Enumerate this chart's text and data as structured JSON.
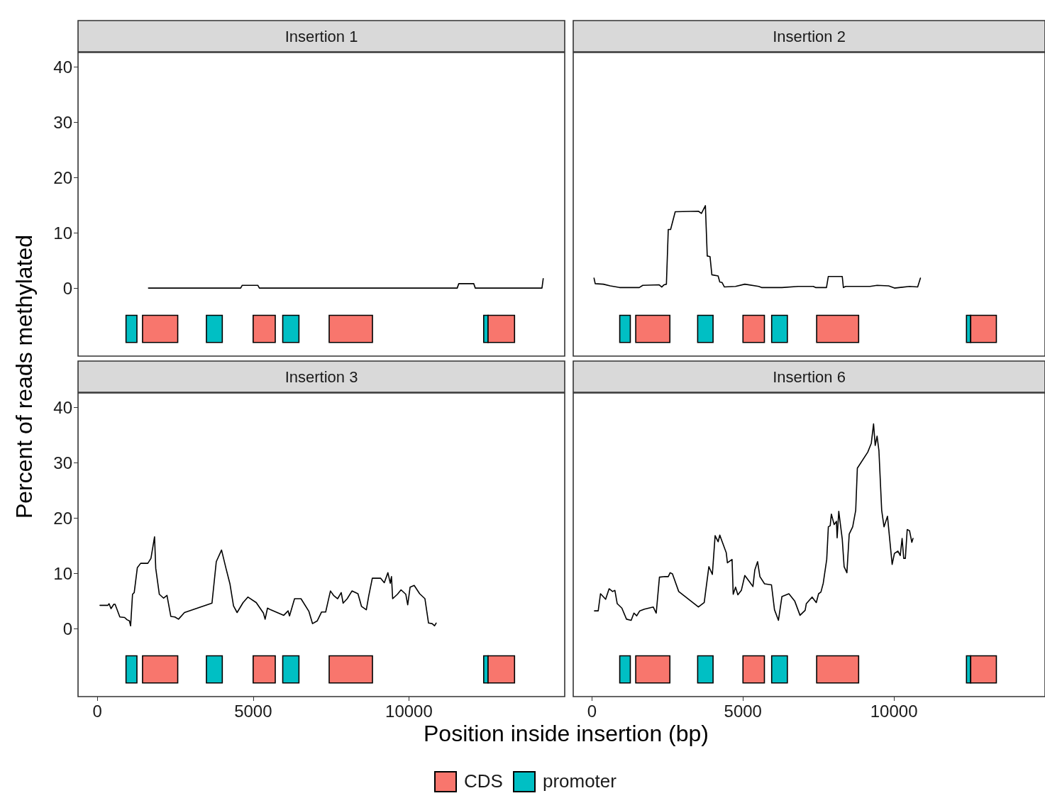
{
  "chart_data": [
    {
      "type": "line",
      "title": "Insertion 1",
      "ylabel": "Percent of reads methylated",
      "legend": "bottom",
      "tick_labels": "y",
      "xlim": [
        -620,
        15000
      ],
      "xticks": [
        0,
        5000,
        10000
      ],
      "ylim": [
        -12.3,
        42.6
      ],
      "yticks": [
        0,
        10,
        20,
        30,
        40
      ],
      "grid": false,
      "series": [
        {
          "color": "#000000",
          "x": [
            1640,
            4600,
            4650,
            5150,
            5200,
            11550,
            11600,
            12080,
            12130,
            14270,
            14310
          ],
          "values": [
            0,
            0,
            0.5,
            0.5,
            0,
            0,
            0.8,
            0.8,
            0,
            0,
            1.7
          ]
        }
      ],
      "bands": [
        {
          "axis": "x",
          "from": 1450,
          "to": 2580,
          "label": "CDS",
          "color": "#f8766d"
        },
        {
          "axis": "x",
          "from": 920,
          "to": 1270,
          "label": "promoter",
          "color": "#00bfc4"
        },
        {
          "axis": "x",
          "from": 3500,
          "to": 4010,
          "color": "#00bfc4"
        },
        {
          "axis": "x",
          "from": 5000,
          "to": 5710,
          "color": "#f8766d"
        },
        {
          "axis": "x",
          "from": 5950,
          "to": 6470,
          "color": "#00bfc4"
        },
        {
          "axis": "x",
          "from": 7440,
          "to": 8830,
          "color": "#f8766d"
        },
        {
          "axis": "x",
          "from": 12400,
          "to": 12540,
          "color": "#00bfc4"
        },
        {
          "axis": "x",
          "from": 12540,
          "to": 13390,
          "color": "#f8766d"
        }
      ]
    },
    {
      "type": "line",
      "title": "Insertion 2",
      "tick_labels": false,
      "xlim": [
        -620,
        15000
      ],
      "xticks": [
        0,
        5000,
        10000
      ],
      "ylim": [
        -12.3,
        42.6
      ],
      "yticks": [
        0,
        10,
        20,
        30,
        40
      ],
      "grid": false,
      "series": [
        {
          "color": "#000000",
          "x": [
            69,
            108,
            376,
            607,
            914,
            1567,
            1682,
            2220,
            2311,
            2389,
            2465,
            2527,
            2604,
            2757,
            3525,
            3625,
            3756,
            3817,
            3909,
            3970,
            4177,
            4232,
            4309,
            4386,
            4754,
            5061,
            5522,
            5615,
            6290,
            6828,
            7327,
            7404,
            7765,
            7826,
            8287,
            8325,
            8402,
            9208,
            9440,
            9824,
            10016,
            10515,
            10784,
            10876
          ],
          "values": [
            1.8,
            0.8,
            0.7,
            0.4,
            0.1,
            0.1,
            0.5,
            0.6,
            0.2,
            0.6,
            0.7,
            10.6,
            10.6,
            13.8,
            13.9,
            13.5,
            14.9,
            5.8,
            5.7,
            2.4,
            2.2,
            1.1,
            1.0,
            0.2,
            0.3,
            0.7,
            0.3,
            0.1,
            0.1,
            0.3,
            0.3,
            0.1,
            0.1,
            2.1,
            2.1,
            0.1,
            0.3,
            0.3,
            0.5,
            0.4,
            0.0,
            0.3,
            0.2,
            1.8
          ]
        }
      ],
      "bands": [
        {
          "axis": "x",
          "from": 920,
          "to": 1270,
          "color": "#00bfc4"
        },
        {
          "axis": "x",
          "from": 1450,
          "to": 2580,
          "color": "#f8766d"
        },
        {
          "axis": "x",
          "from": 3500,
          "to": 4010,
          "color": "#00bfc4"
        },
        {
          "axis": "x",
          "from": 5000,
          "to": 5710,
          "color": "#f8766d"
        },
        {
          "axis": "x",
          "from": 5950,
          "to": 6470,
          "color": "#00bfc4"
        },
        {
          "axis": "x",
          "from": 7440,
          "to": 8830,
          "color": "#f8766d"
        },
        {
          "axis": "x",
          "from": 12400,
          "to": 12540,
          "color": "#00bfc4"
        },
        {
          "axis": "x",
          "from": 12540,
          "to": 13390,
          "color": "#f8766d"
        }
      ]
    },
    {
      "type": "line",
      "title": "Insertion 3",
      "xlabel": "Position inside insertion (bp)",
      "xlim": [
        -620,
        15000
      ],
      "xticks": [
        0,
        5000,
        10000
      ],
      "ylim": [
        -12.3,
        42.6
      ],
      "yticks": [
        0,
        10,
        20,
        30,
        40
      ],
      "grid": false,
      "series": [
        {
          "color": "#000000",
          "x": [
            84,
            338,
            376,
            438,
            530,
            568,
            722,
            876,
            952,
            1029,
            1068,
            1129,
            1183,
            1283,
            1390,
            1620,
            1720,
            1836,
            1874,
            1989,
            2127,
            2235,
            2358,
            2488,
            2604,
            2796,
            3679,
            3817,
            3986,
            4124,
            4255,
            4370,
            4485,
            4677,
            4831,
            5100,
            5330,
            5384,
            5461,
            5561,
            5983,
            6122,
            6168,
            6329,
            6536,
            6790,
            6905,
            7059,
            7197,
            7328,
            7404,
            7481,
            7581,
            7712,
            7827,
            7888,
            8019,
            8172,
            8364,
            8479,
            8633,
            8710,
            8825,
            9094,
            9209,
            9325,
            9401,
            9440,
            9478,
            9631,
            9747,
            9900,
            9961,
            10038,
            10169,
            10345,
            10514,
            10629,
            10744,
            10821,
            10875
          ],
          "values": [
            4.2,
            4.2,
            4.5,
            3.6,
            4.4,
            4.4,
            2.1,
            2.0,
            1.6,
            1.4,
            0.5,
            6.2,
            6.5,
            11.0,
            11.8,
            11.8,
            12.7,
            16.6,
            10.9,
            6.2,
            5.5,
            6.0,
            2.2,
            2.1,
            1.7,
            2.9,
            4.6,
            12.1,
            14.2,
            11.0,
            8.1,
            4.1,
            2.9,
            4.7,
            5.7,
            4.7,
            2.8,
            1.7,
            3.7,
            3.4,
            2.4,
            3.2,
            2.3,
            5.4,
            5.4,
            3.1,
            0.9,
            1.4,
            3.0,
            3.0,
            4.9,
            6.8,
            6.0,
            5.4,
            6.5,
            4.6,
            5.4,
            6.8,
            6.3,
            4.0,
            3.4,
            5.9,
            9.1,
            9.1,
            8.3,
            10.1,
            8.2,
            9.4,
            5.4,
            6.2,
            7.0,
            6.2,
            4.3,
            7.5,
            7.8,
            6.3,
            5.4,
            1.0,
            0.9,
            0.5,
            1.0
          ]
        }
      ],
      "bands": [
        {
          "axis": "x",
          "from": 920,
          "to": 1270,
          "color": "#00bfc4"
        },
        {
          "axis": "x",
          "from": 1450,
          "to": 2580,
          "color": "#f8766d"
        },
        {
          "axis": "x",
          "from": 3500,
          "to": 4010,
          "color": "#00bfc4"
        },
        {
          "axis": "x",
          "from": 5000,
          "to": 5710,
          "color": "#f8766d"
        },
        {
          "axis": "x",
          "from": 5950,
          "to": 6470,
          "color": "#00bfc4"
        },
        {
          "axis": "x",
          "from": 7440,
          "to": 8830,
          "color": "#f8766d"
        },
        {
          "axis": "x",
          "from": 12400,
          "to": 12540,
          "color": "#00bfc4"
        },
        {
          "axis": "x",
          "from": 12540,
          "to": 13390,
          "color": "#f8766d"
        }
      ]
    },
    {
      "type": "line",
      "title": "Insertion 6",
      "tick_labels": "x",
      "xlim": [
        -620,
        15000
      ],
      "xticks": [
        0,
        5000,
        10000
      ],
      "ylim": [
        -12.3,
        42.6
      ],
      "yticks": [
        0,
        10,
        20,
        30,
        40
      ],
      "grid": false,
      "series": [
        {
          "color": "#000000",
          "x": [
            84,
            207,
            283,
            453,
            568,
            683,
            760,
            837,
            990,
            1144,
            1298,
            1390,
            1482,
            1582,
            1736,
            2028,
            2128,
            2235,
            2412,
            2527,
            2589,
            2665,
            2873,
            3525,
            3717,
            3871,
            3986,
            4078,
            4178,
            4232,
            4447,
            4485,
            4639,
            4677,
            4754,
            4831,
            4946,
            5061,
            5253,
            5330,
            5392,
            5484,
            5561,
            5714,
            5944,
            6044,
            6175,
            6290,
            6520,
            6712,
            6889,
            7058,
            7097,
            7289,
            7427,
            7504,
            7581,
            7658,
            7773,
            7827,
            7888,
            7926,
            8019,
            8095,
            8118,
            8172,
            8287,
            8349,
            8441,
            8518,
            8633,
            8733,
            8787,
            9132,
            9248,
            9324,
            9378,
            9440,
            9501,
            9593,
            9670,
            9785,
            9939,
            10015,
            10130,
            10207,
            10269,
            10322,
            10376,
            10438,
            10515,
            10591,
            10630
          ],
          "values": [
            3.2,
            3.2,
            6.3,
            5.3,
            7.2,
            6.7,
            6.9,
            4.5,
            3.7,
            1.7,
            1.5,
            2.8,
            2.3,
            3.2,
            3.5,
            3.9,
            2.8,
            9.3,
            9.4,
            9.4,
            10.1,
            9.9,
            6.7,
            3.9,
            4.7,
            11.2,
            9.8,
            16.8,
            15.7,
            16.9,
            13.7,
            11.9,
            12.5,
            6.2,
            7.5,
            6.1,
            6.9,
            9.6,
            8.2,
            7.6,
            10.6,
            12.1,
            9.4,
            8.1,
            7.9,
            3.4,
            1.5,
            5.8,
            6.3,
            5.0,
            2.4,
            3.3,
            4.5,
            5.7,
            4.7,
            6.3,
            6.6,
            8.2,
            12.5,
            18.4,
            18.6,
            20.7,
            18.8,
            19.4,
            16.4,
            21.2,
            16.2,
            11.2,
            10.1,
            17.1,
            18.4,
            21.4,
            29.0,
            31.9,
            33.5,
            37.0,
            33.1,
            34.8,
            32.2,
            21.4,
            18.4,
            20.3,
            11.6,
            13.6,
            14.0,
            13.2,
            16.3,
            12.7,
            12.7,
            17.9,
            17.7,
            15.6,
            16.3
          ]
        }
      ],
      "bands": [
        {
          "axis": "x",
          "from": 920,
          "to": 1270,
          "color": "#00bfc4"
        },
        {
          "axis": "x",
          "from": 1450,
          "to": 2580,
          "color": "#f8766d"
        },
        {
          "axis": "x",
          "from": 3500,
          "to": 4010,
          "color": "#00bfc4"
        },
        {
          "axis": "x",
          "from": 5000,
          "to": 5710,
          "color": "#f8766d"
        },
        {
          "axis": "x",
          "from": 5950,
          "to": 6470,
          "color": "#00bfc4"
        },
        {
          "axis": "x",
          "from": 7440,
          "to": 8830,
          "color": "#f8766d"
        },
        {
          "axis": "x",
          "from": 12400,
          "to": 12540,
          "color": "#00bfc4"
        },
        {
          "axis": "x",
          "from": 12540,
          "to": 13390,
          "color": "#f8766d"
        }
      ]
    }
  ]
}
